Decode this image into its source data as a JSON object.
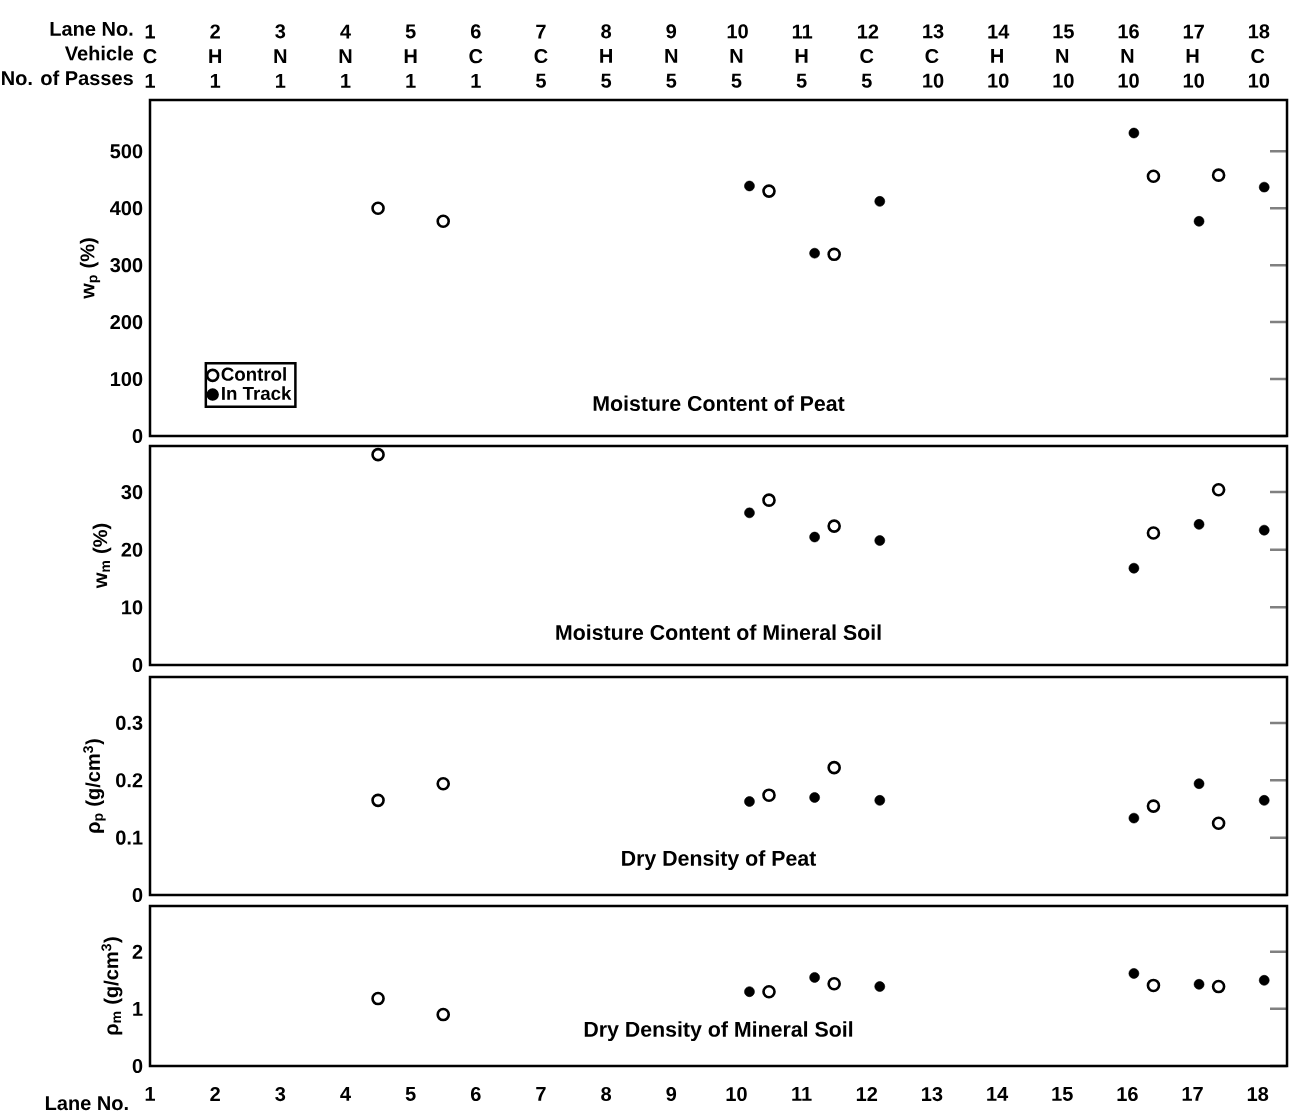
{
  "chart_data": [
    {
      "type": "scatter",
      "title": "Moisture Content of Peat",
      "ylabel": "w$_{p}$ (%)",
      "xlim": [
        1,
        18.45
      ],
      "ylim": [
        0,
        590
      ],
      "yticks": [
        0,
        100,
        200,
        300,
        400,
        500
      ],
      "legend": "bottom left",
      "x2label": "Lane No.",
      "x2lim": [
        1,
        18.45
      ],
      "annotations": [
        "Vehicle",
        "No. of Passes",
        "C\n1",
        "H\n1",
        "N\n1",
        "N\n1",
        "H\n1",
        "C\n1",
        "C\n5",
        "H\n5",
        "N\n5",
        "N\n5",
        "H\n5",
        "C\n5",
        "C\n10",
        "H\n10",
        "N\n10",
        "N\n10",
        "H\n10",
        "C\n10"
      ],
      "x2ticks": [
        1,
        2,
        3,
        4,
        5,
        6,
        7,
        8,
        9,
        10,
        11,
        12,
        13,
        14,
        15,
        16,
        17,
        18
      ],
      "series": [
        {
          "name": "Control",
          "color": "#ffffff",
          "marker": "circle",
          "x": [
            4.5,
            5.5,
            10.5,
            11.5,
            16.4,
            17.4
          ],
          "values": [
            400,
            377,
            430,
            319,
            456,
            458
          ]
        },
        {
          "name": "In Track",
          "color": "#000000",
          "marker": "circle",
          "x": [
            10.2,
            11.2,
            12.2,
            16.1,
            17.1,
            18.1
          ],
          "values": [
            439,
            321,
            412,
            532,
            377,
            437
          ]
        }
      ]
    },
    {
      "type": "scatter",
      "title": "Moisture Content of Mineral Soil",
      "ylabel": "w$_{m}$ (%)",
      "xlim": [
        1,
        18.45
      ],
      "ylim": [
        0,
        38
      ],
      "yticks": [
        0,
        10,
        20,
        30
      ],
      "tick_labels": "y",
      "series": [
        {
          "color": "#ffffff",
          "marker": "circle",
          "x": [
            4.5,
            10.5,
            11.5,
            16.4,
            17.4
          ],
          "values": [
            36.5,
            28.6,
            24.1,
            22.9,
            30.4
          ]
        },
        {
          "color": "#000000",
          "marker": "circle",
          "x": [
            10.2,
            11.2,
            12.2,
            16.1,
            17.1,
            18.1
          ],
          "values": [
            26.4,
            22.2,
            21.6,
            16.8,
            24.4,
            23.4
          ]
        }
      ]
    },
    {
      "type": "scatter",
      "title": "Dry Density of Peat",
      "ylabel": "ρ$_{p}$ (g/cm$^{3}$)",
      "xlim": [
        1,
        18.45
      ],
      "ylim": [
        0,
        0.38
      ],
      "yticks": [
        0,
        0.1,
        0.2,
        0.3
      ],
      "tick_labels": "y",
      "series": [
        {
          "color": "#ffffff",
          "marker": "circle",
          "x": [
            4.5,
            5.5,
            10.5,
            11.5,
            16.4,
            17.4
          ],
          "values": [
            0.165,
            0.194,
            0.174,
            0.222,
            0.155,
            0.125
          ]
        },
        {
          "color": "#000000",
          "marker": "circle",
          "x": [
            10.2,
            11.2,
            12.2,
            16.1,
            17.1,
            18.1
          ],
          "values": [
            0.163,
            0.17,
            0.165,
            0.134,
            0.194,
            0.165
          ]
        }
      ]
    },
    {
      "type": "scatter",
      "title": "Dry Density of Mineral Soil",
      "ylabel": "ρ$_{m}$ (g/cm$^{3}$)",
      "xlabel": "Lane No.",
      "xlim": [
        1,
        18.45
      ],
      "ylim": [
        0,
        2.8
      ],
      "yticks": [
        0,
        1,
        2
      ],
      "xticks": [
        1,
        2,
        3,
        4,
        5,
        6,
        7,
        8,
        9,
        10,
        11,
        12,
        13,
        14,
        15,
        16,
        17,
        18
      ],
      "series": [
        {
          "color": "#ffffff",
          "marker": "circle",
          "x": [
            4.5,
            5.5,
            10.5,
            11.5,
            16.4,
            17.4
          ],
          "values": [
            1.18,
            0.9,
            1.3,
            1.44,
            1.41,
            1.39
          ]
        },
        {
          "color": "#000000",
          "marker": "circle",
          "x": [
            10.2,
            11.2,
            12.2,
            16.1,
            17.1,
            18.1
          ],
          "values": [
            1.3,
            1.55,
            1.39,
            1.62,
            1.43,
            1.5
          ]
        }
      ]
    }
  ]
}
